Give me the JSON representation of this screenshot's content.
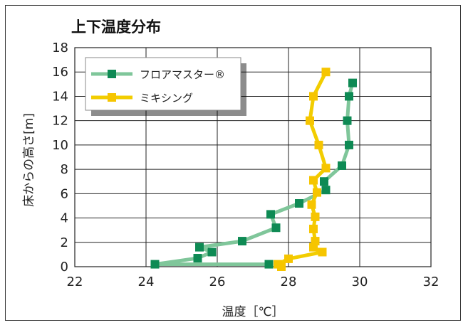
{
  "chart_data": {
    "type": "line",
    "title": "上下温度分布",
    "xlabel": "温度［℃］",
    "ylabel": "床からの高さ[m]",
    "xlim": [
      22,
      32
    ],
    "ylim": [
      0,
      18
    ],
    "xticks": [
      "22",
      "24",
      "26",
      "28",
      "30",
      "32"
    ],
    "yticks": [
      "0",
      "2",
      "4",
      "6",
      "8",
      "10",
      "12",
      "14",
      "16",
      "18"
    ],
    "grid": true,
    "legend_position": "top-left",
    "series": [
      {
        "name": "フロアマスター®",
        "color_line": "#7fc69a",
        "color_marker": "#0e8a54",
        "points": [
          [
            29.8,
            15.1
          ],
          [
            29.7,
            14.0
          ],
          [
            29.65,
            12.0
          ],
          [
            29.7,
            10.0
          ],
          [
            29.5,
            8.3
          ],
          [
            29.0,
            7.0
          ],
          [
            29.05,
            6.3
          ],
          [
            28.3,
            5.2
          ],
          [
            27.5,
            4.3
          ],
          [
            27.65,
            3.2
          ],
          [
            26.7,
            2.1
          ],
          [
            25.5,
            1.6
          ],
          [
            25.85,
            1.2
          ],
          [
            25.45,
            0.7
          ],
          [
            24.25,
            0.2
          ],
          [
            27.45,
            0.2
          ]
        ]
      },
      {
        "name": "ミキシング",
        "color_line": "#f2cd00",
        "color_marker": "#f6c500",
        "points": [
          [
            29.05,
            16.0
          ],
          [
            28.7,
            14.0
          ],
          [
            28.6,
            12.0
          ],
          [
            28.85,
            10.0
          ],
          [
            29.05,
            8.1
          ],
          [
            28.7,
            7.1
          ],
          [
            28.8,
            6.1
          ],
          [
            28.65,
            5.1
          ],
          [
            28.75,
            4.1
          ],
          [
            28.7,
            3.1
          ],
          [
            28.75,
            2.1
          ],
          [
            28.7,
            1.6
          ],
          [
            28.95,
            1.2
          ],
          [
            28.0,
            0.65
          ],
          [
            27.7,
            0.2
          ],
          [
            27.8,
            0.0
          ]
        ]
      }
    ]
  }
}
